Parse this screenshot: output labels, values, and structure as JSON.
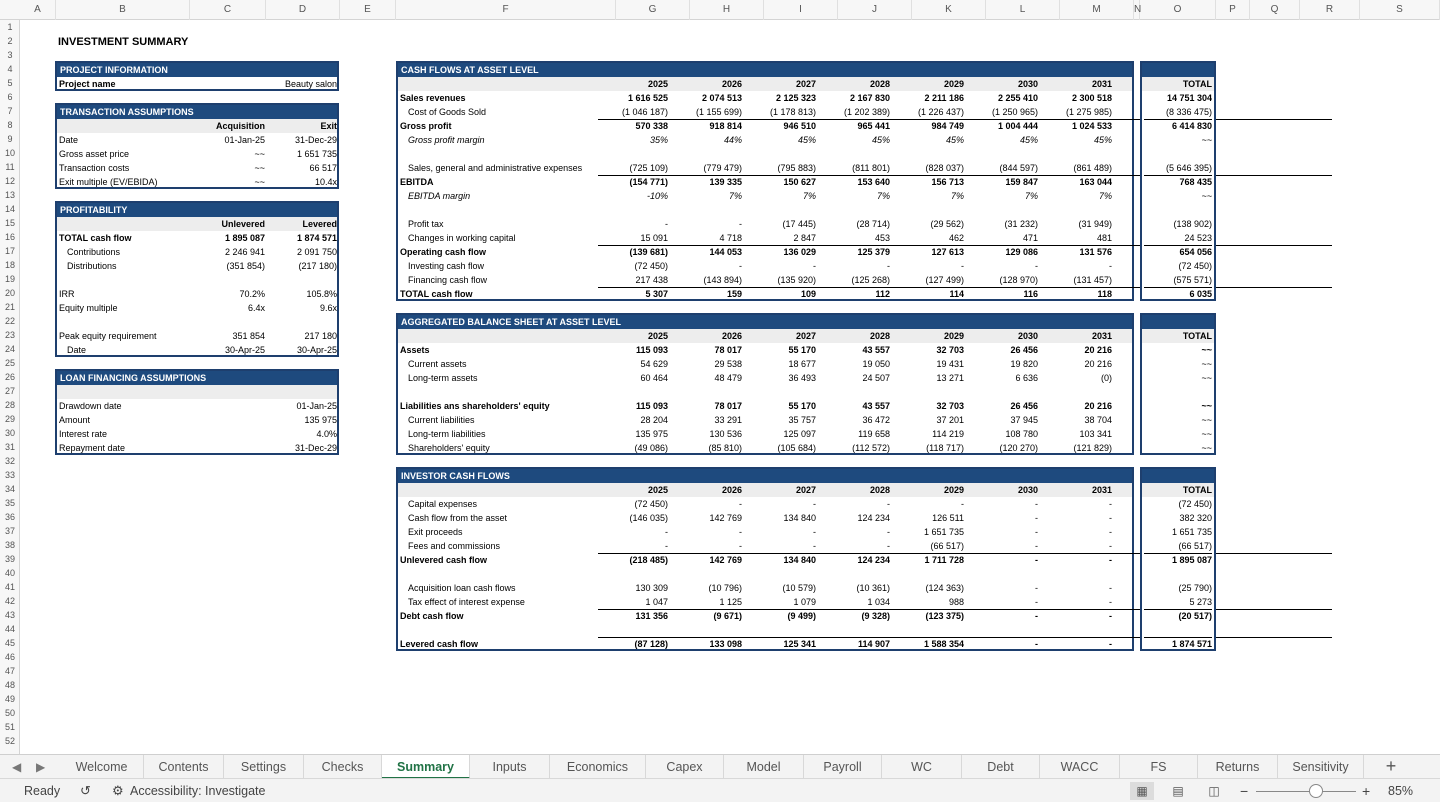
{
  "columns": [
    "A",
    "B",
    "C",
    "D",
    "E",
    "F",
    "G",
    "H",
    "I",
    "J",
    "K",
    "L",
    "M",
    "N",
    "O",
    "P",
    "Q",
    "R",
    "S"
  ],
  "rows": [
    "1",
    "2",
    "3",
    "4",
    "5",
    "6",
    "7",
    "8",
    "9",
    "10",
    "11",
    "12",
    "13",
    "14",
    "15",
    "16",
    "17",
    "18",
    "19",
    "20",
    "21",
    "22",
    "23",
    "24",
    "25",
    "26",
    "27",
    "28",
    "29",
    "30",
    "31",
    "32",
    "33",
    "34",
    "35",
    "36",
    "37",
    "38",
    "39",
    "40",
    "41",
    "42",
    "43",
    "44",
    "45",
    "46",
    "47",
    "48",
    "49",
    "50",
    "51",
    "52"
  ],
  "sheet_title": "INVESTMENT SUMMARY",
  "project": {
    "title": "PROJECT INFORMATION",
    "label": "Project name",
    "value": "Beauty salon"
  },
  "transaction": {
    "title": "TRANSACTION ASSUMPTIONS",
    "col1": "Acquisition",
    "col2": "Exit",
    "rows": [
      {
        "label": "Date",
        "v1": "01-Jan-25",
        "v2": "31-Dec-29"
      },
      {
        "label": "Gross asset price",
        "v1": "~~",
        "v2": "1 651 735"
      },
      {
        "label": "Transaction costs",
        "v1": "~~",
        "v2": "66 517"
      },
      {
        "label": "Exit multiple (EV/EBIDA)",
        "v1": "~~",
        "v2": "10.4x"
      }
    ]
  },
  "profitability": {
    "title": "PROFITABILITY",
    "col1": "Unlevered",
    "col2": "Levered",
    "rows": [
      {
        "label": "TOTAL cash flow",
        "v1": "1 895 087",
        "v2": "1 874 571"
      },
      {
        "label": "Contributions",
        "v1": "2 246 941",
        "v2": "2 091 750"
      },
      {
        "label": "Distributions",
        "v1": "(351 854)",
        "v2": "(217 180)"
      },
      {
        "label": "IRR",
        "v1": "70.2%",
        "v2": "105.8%"
      },
      {
        "label": "Equity multiple",
        "v1": "6.4x",
        "v2": "9.6x"
      },
      {
        "label": "Peak equity requirement",
        "v1": "351 854",
        "v2": "217 180"
      },
      {
        "label": "Date",
        "v1": "30-Apr-25",
        "v2": "30-Apr-25"
      }
    ]
  },
  "loan": {
    "title": "LOAN FINANCING ASSUMPTIONS",
    "rows": [
      {
        "label": "Drawdown date",
        "value": "01-Jan-25"
      },
      {
        "label": "Amount",
        "value": "135 975"
      },
      {
        "label": "Interest rate",
        "value": "4.0%"
      },
      {
        "label": "Repayment date",
        "value": "31-Dec-29"
      }
    ]
  },
  "cashflows": {
    "title": "CASH FLOWS AT ASSET LEVEL",
    "years": [
      "2025",
      "2026",
      "2027",
      "2028",
      "2029",
      "2030",
      "2031"
    ],
    "total_label": "TOTAL",
    "rows": [
      {
        "label": "Sales revenues",
        "vals": [
          "1 616 525",
          "2 074 513",
          "2 125 323",
          "2 167 830",
          "2 211 186",
          "2 255 410",
          "2 300 518"
        ],
        "total": "14 751 304"
      },
      {
        "label": "Cost of Goods Sold",
        "vals": [
          "(1 046 187)",
          "(1 155 699)",
          "(1 178 813)",
          "(1 202 389)",
          "(1 226 437)",
          "(1 250 965)",
          "(1 275 985)"
        ],
        "total": "(8 336 475)"
      },
      {
        "label": "Gross profit",
        "vals": [
          "570 338",
          "918 814",
          "946 510",
          "965 441",
          "984 749",
          "1 004 444",
          "1 024 533"
        ],
        "total": "6 414 830"
      },
      {
        "label": "Gross profit margin",
        "vals": [
          "35%",
          "44%",
          "45%",
          "45%",
          "45%",
          "45%",
          "45%"
        ],
        "total": "~~"
      },
      {
        "label": "Sales, general and administrative expenses",
        "vals": [
          "(725 109)",
          "(779 479)",
          "(795 883)",
          "(811 801)",
          "(828 037)",
          "(844 597)",
          "(861 489)"
        ],
        "total": "(5 646 395)"
      },
      {
        "label": "EBITDA",
        "vals": [
          "(154 771)",
          "139 335",
          "150 627",
          "153 640",
          "156 713",
          "159 847",
          "163 044"
        ],
        "total": "768 435"
      },
      {
        "label": "EBITDA margin",
        "vals": [
          "-10%",
          "7%",
          "7%",
          "7%",
          "7%",
          "7%",
          "7%"
        ],
        "total": "~~"
      },
      {
        "label": "Profit tax",
        "vals": [
          "-",
          "-",
          "(17 445)",
          "(28 714)",
          "(29 562)",
          "(31 232)",
          "(31 949)"
        ],
        "total": "(138 902)"
      },
      {
        "label": "Changes in working capital",
        "vals": [
          "15 091",
          "4 718",
          "2 847",
          "453",
          "462",
          "471",
          "481"
        ],
        "total": "24 523"
      },
      {
        "label": "Operating cash flow",
        "vals": [
          "(139 681)",
          "144 053",
          "136 029",
          "125 379",
          "127 613",
          "129 086",
          "131 576"
        ],
        "total": "654 056"
      },
      {
        "label": "Investing cash flow",
        "vals": [
          "(72 450)",
          "-",
          "-",
          "-",
          "-",
          "-",
          "-"
        ],
        "total": "(72 450)"
      },
      {
        "label": "Financing cash flow",
        "vals": [
          "217 438",
          "(143 894)",
          "(135 920)",
          "(125 268)",
          "(127 499)",
          "(128 970)",
          "(131 457)"
        ],
        "total": "(575 571)"
      },
      {
        "label": "TOTAL cash flow",
        "vals": [
          "5 307",
          "159",
          "109",
          "112",
          "114",
          "116",
          "118"
        ],
        "total": "6 035"
      }
    ]
  },
  "balance": {
    "title": "AGGREGATED BALANCE SHEET AT ASSET LEVEL",
    "years": [
      "2025",
      "2026",
      "2027",
      "2028",
      "2029",
      "2030",
      "2031"
    ],
    "total_label": "TOTAL",
    "rows": [
      {
        "label": "Assets",
        "vals": [
          "115 093",
          "78 017",
          "55 170",
          "43 557",
          "32 703",
          "26 456",
          "20 216"
        ],
        "total": "~~"
      },
      {
        "label": "Current assets",
        "vals": [
          "54 629",
          "29 538",
          "18 677",
          "19 050",
          "19 431",
          "19 820",
          "20 216"
        ],
        "total": "~~"
      },
      {
        "label": "Long-term assets",
        "vals": [
          "60 464",
          "48 479",
          "36 493",
          "24 507",
          "13 271",
          "6 636",
          "(0)"
        ],
        "total": "~~"
      },
      {
        "label": "Liabilities ans shareholders' equity",
        "vals": [
          "115 093",
          "78 017",
          "55 170",
          "43 557",
          "32 703",
          "26 456",
          "20 216"
        ],
        "total": "~~"
      },
      {
        "label": "Current liabilities",
        "vals": [
          "28 204",
          "33 291",
          "35 757",
          "36 472",
          "37 201",
          "37 945",
          "38 704"
        ],
        "total": "~~"
      },
      {
        "label": "Long-term liabilities",
        "vals": [
          "135 975",
          "130 536",
          "125 097",
          "119 658",
          "114 219",
          "108 780",
          "103 341"
        ],
        "total": "~~"
      },
      {
        "label": "Shareholders' equity",
        "vals": [
          "(49 086)",
          "(85 810)",
          "(105 684)",
          "(112 572)",
          "(118 717)",
          "(120 270)",
          "(121 829)"
        ],
        "total": "~~"
      }
    ]
  },
  "investor": {
    "title": "INVESTOR CASH FLOWS",
    "years": [
      "2025",
      "2026",
      "2027",
      "2028",
      "2029",
      "2030",
      "2031"
    ],
    "total_label": "TOTAL",
    "rows": [
      {
        "label": "Capital expenses",
        "vals": [
          "(72 450)",
          "-",
          "-",
          "-",
          "-",
          "-",
          "-"
        ],
        "total": "(72 450)"
      },
      {
        "label": "Cash flow from the asset",
        "vals": [
          "(146 035)",
          "142 769",
          "134 840",
          "124 234",
          "126 511",
          "-",
          "-"
        ],
        "total": "382 320"
      },
      {
        "label": "Exit proceeds",
        "vals": [
          "-",
          "-",
          "-",
          "-",
          "1 651 735",
          "-",
          "-"
        ],
        "total": "1 651 735"
      },
      {
        "label": "Fees and commissions",
        "vals": [
          "-",
          "-",
          "-",
          "-",
          "(66 517)",
          "-",
          "-"
        ],
        "total": "(66 517)"
      },
      {
        "label": "Unlevered cash flow",
        "vals": [
          "(218 485)",
          "142 769",
          "134 840",
          "124 234",
          "1 711 728",
          "-",
          "-"
        ],
        "total": "1 895 087"
      },
      {
        "label": "Acquisition loan cash flows",
        "vals": [
          "130 309",
          "(10 796)",
          "(10 579)",
          "(10 361)",
          "(124 363)",
          "-",
          "-"
        ],
        "total": "(25 790)"
      },
      {
        "label": "Tax effect of interest expense",
        "vals": [
          "1 047",
          "1 125",
          "1 079",
          "1 034",
          "988",
          "-",
          "-"
        ],
        "total": "5 273"
      },
      {
        "label": "Debt cash flow",
        "vals": [
          "131 356",
          "(9 671)",
          "(9 499)",
          "(9 328)",
          "(123 375)",
          "-",
          "-"
        ],
        "total": "(20 517)"
      },
      {
        "label": "Levered cash flow",
        "vals": [
          "(87 128)",
          "133 098",
          "125 341",
          "114 907",
          "1 588 354",
          "-",
          "-"
        ],
        "total": "1 874 571"
      }
    ]
  },
  "tabs": [
    "Welcome",
    "Contents",
    "Settings",
    "Checks",
    "Summary",
    "Inputs",
    "Economics",
    "Capex",
    "Model",
    "Payroll",
    "WC",
    "Debt",
    "WACC",
    "FS",
    "Returns",
    "Sensitivity"
  ],
  "active_tab": "Summary",
  "status": {
    "ready": "Ready",
    "accessibility": "Accessibility: Investigate",
    "zoom": "85%",
    "zoom_level": 0.6
  },
  "icons": {
    "prev": "caret-left",
    "next": "caret-right",
    "add": "plus",
    "macro": "macro-recording-icon",
    "accessibility": "accessibility-icon",
    "normal": "grid-view-icon",
    "page_layout": "page-layout-icon",
    "page_break": "page-break-icon"
  }
}
